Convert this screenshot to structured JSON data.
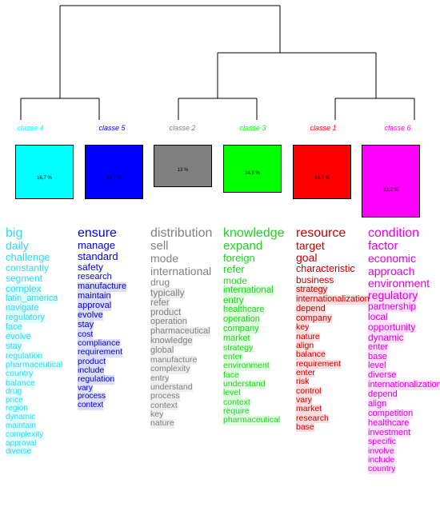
{
  "classes": [
    {
      "id": "c4",
      "label": "classe 4",
      "color": "#00ffff",
      "text": "#33d6f0",
      "percent": "16,7 %",
      "bar": 0.506
    },
    {
      "id": "c5",
      "label": "classe 5",
      "color": "#0000ff",
      "text": "#0000e0",
      "percent": "16,7 %",
      "bar": 0.506
    },
    {
      "id": "c2",
      "label": "classe 2",
      "color": "#808080",
      "text": "#808080",
      "percent": "13 %",
      "bar": 0.394
    },
    {
      "id": "c3",
      "label": "classe 3",
      "color": "#00ff00",
      "text": "#22d022",
      "percent": "14,8 %",
      "bar": 0.448
    },
    {
      "id": "c1",
      "label": "classe 1",
      "color": "#ff0000",
      "text": "#c80000",
      "percent": "16,7 %",
      "bar": 0.506
    },
    {
      "id": "c6",
      "label": "classe 6",
      "color": "#ff00ff",
      "text": "#e000e0",
      "percent": "22,2 %",
      "bar": 0.673
    }
  ],
  "words": {
    "c4": [
      "big",
      "daily",
      "challenge",
      "constantly",
      "segment",
      "complex",
      "latin_america",
      "navigate",
      "regulatory",
      "face",
      "evolve",
      "stay",
      "regulation",
      "pharmaceutical",
      "country",
      "balance",
      "drug",
      "price",
      "region",
      "dynamic",
      "maintain",
      "complexity",
      "approval",
      "diverse"
    ],
    "c5": [
      "ensure",
      "manage",
      "standard",
      "safety",
      "research",
      "manufacture",
      "maintain",
      "approval",
      "evolve",
      "stay",
      "cost",
      "compliance",
      "requirement",
      "product",
      "include",
      "regulation",
      "vary",
      "process",
      "context"
    ],
    "c2": [
      "distribution",
      "sell",
      "mode",
      "international",
      "drug",
      "typically",
      "refer",
      "product",
      "operation",
      "pharmaceutical",
      "knowledge",
      "global",
      "manufacture",
      "complexity",
      "entry",
      "understand",
      "process",
      "context",
      "key",
      "nature"
    ],
    "c3": [
      "knowledge",
      "expand",
      "foreign",
      "refer",
      "mode",
      "international",
      "entry",
      "healthcare",
      "operation",
      "company",
      "market",
      "strategy",
      "enter",
      "environment",
      "face",
      "understand",
      "level",
      "context",
      "require",
      "pharmaceutical"
    ],
    "c1": [
      "resource",
      "target",
      "goal",
      "characteristic",
      "business",
      "strategy",
      "internationalization",
      "depend",
      "company",
      "key",
      "nature",
      "align",
      "balance",
      "requirement",
      "enter",
      "risk",
      "control",
      "vary",
      "market",
      "research",
      "base"
    ],
    "c6": [
      "condition",
      "factor",
      "economic",
      "approach",
      "environment",
      "regulatory",
      "partnership",
      "local",
      "opportunity",
      "dynamic",
      "enter",
      "base",
      "level",
      "diverse",
      "internationalization",
      "depend",
      "align",
      "competition",
      "healthcare",
      "investment",
      "specific",
      "involve",
      "include",
      "country"
    ]
  },
  "sizes": {
    "c4": [
      16,
      14,
      13,
      12,
      12,
      12,
      11,
      11,
      11,
      11,
      11,
      11,
      10.5,
      10.5,
      10.5,
      10.5,
      10,
      10,
      10,
      10,
      10,
      10,
      10,
      10
    ],
    "c5": [
      16,
      13,
      13,
      12,
      11,
      11,
      11,
      11,
      11,
      11,
      10.5,
      10.5,
      10.5,
      10.5,
      10.5,
      10.5,
      10,
      10,
      10
    ],
    "c2": [
      16,
      15,
      14,
      14,
      12,
      12,
      11.5,
      11.5,
      11,
      11,
      11,
      11,
      10.5,
      10.5,
      10.5,
      10.5,
      10.5,
      10.5,
      10.5,
      10.5
    ],
    "c3": [
      16,
      15,
      13,
      13,
      12,
      11.5,
      11.5,
      11,
      11,
      11,
      11,
      10.5,
      10.5,
      10.5,
      10.5,
      10.5,
      10.5,
      10.5,
      10.5,
      10.5
    ],
    "c1": [
      16,
      14,
      14,
      12.5,
      12,
      11,
      11,
      11,
      11,
      10.5,
      10.5,
      10.5,
      10.5,
      10.5,
      10.5,
      10.5,
      10.5,
      10.5,
      10.5,
      10.5,
      10.5
    ],
    "c6": [
      16,
      15,
      14,
      14,
      14,
      14,
      12,
      12,
      12,
      12,
      11,
      11,
      11,
      11,
      11,
      11,
      11,
      11,
      11,
      11,
      10.5,
      10.5,
      10.5,
      10.5
    ]
  }
}
